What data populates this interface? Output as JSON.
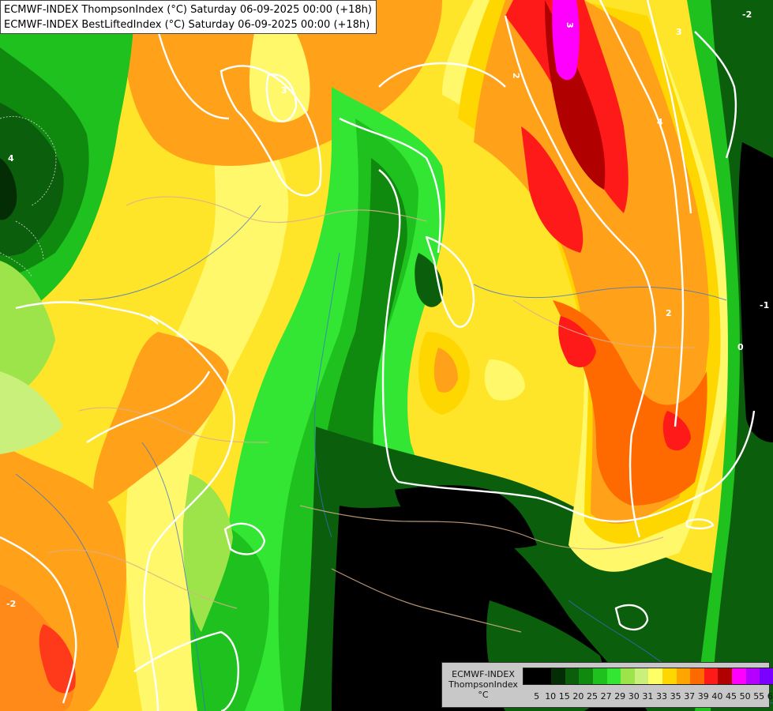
{
  "header": {
    "line1": "ECMWF-INDEX ThompsonIndex (°C) Saturday 06-09-2025 00:00 (+18h)",
    "line2": "ECMWF-INDEX BestLiftedIndex (°C) Saturday 06-09-2025 00:00 (+18h)"
  },
  "legend": {
    "title_line1": "ECMWF-INDEX",
    "title_line2": "ThompsonIndex",
    "unit": "°C",
    "colors": [
      "#000000",
      "#000000",
      "#052d05",
      "#0b5e0b",
      "#0f8a0f",
      "#1ec11e",
      "#33e633",
      "#9de34a",
      "#c9f07a",
      "#ffff66",
      "#ffd700",
      "#ffa500",
      "#ff6a00",
      "#ff1a1a",
      "#b00000",
      "#ff00ff",
      "#b400ff",
      "#7a00ff",
      "#0000ff"
    ],
    "ticks": [
      "5",
      "10",
      "15",
      "20",
      "25",
      "27",
      "29",
      "30",
      "31",
      "33",
      "35",
      "37",
      "39",
      "40",
      "45",
      "50",
      "55",
      "60"
    ]
  },
  "contour_labels": {
    "l1": "4",
    "l2": "3",
    "l3": "2",
    "l4": "3",
    "l5": "4",
    "l6": "2",
    "l7": "-1",
    "l8": "0",
    "l9": "-2",
    "l10": "-2",
    "l11": "3"
  }
}
